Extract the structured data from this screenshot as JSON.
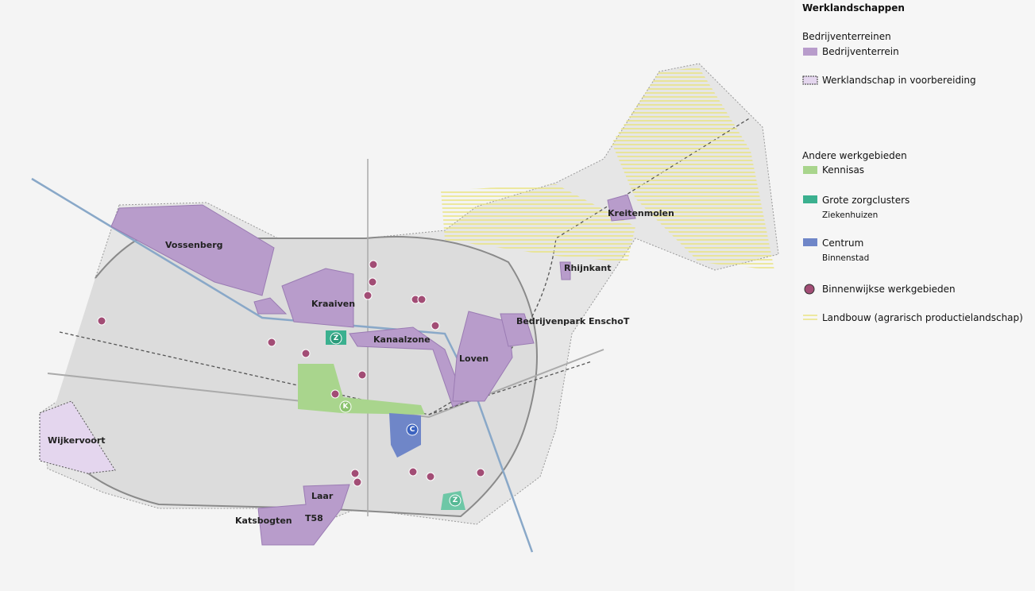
{
  "legend": {
    "title": "Werklandschappen",
    "groups": [
      {
        "heading": "Bedrijventerreinen",
        "items": [
          {
            "label": "Bedrijventerrein"
          },
          {
            "label": "Werklandschap in voorbereiding"
          }
        ]
      },
      {
        "heading": "Andere werkgebieden",
        "items": [
          {
            "label": "Kennisas"
          },
          {
            "label": "Grote zorgclusters",
            "sublabel": "Ziekenhuizen"
          },
          {
            "label": "Centrum",
            "sublabel": "Binnenstad"
          },
          {
            "label": "Binnenwijkse werkgebieden"
          },
          {
            "label": "Landbouw (agrarisch productielandschap)"
          }
        ]
      }
    ]
  },
  "map": {
    "areas": [
      "Vossenberg",
      "Kraaiven",
      "Kanaalzone",
      "Loven",
      "Bedrijvenpark EnschoT",
      "Rhijnkant",
      "Kreitenmolen",
      "Wijkervoort",
      "Laar",
      "T58",
      "Katsbogten"
    ],
    "icons": [
      "Z",
      "K",
      "C",
      "Z"
    ]
  }
}
